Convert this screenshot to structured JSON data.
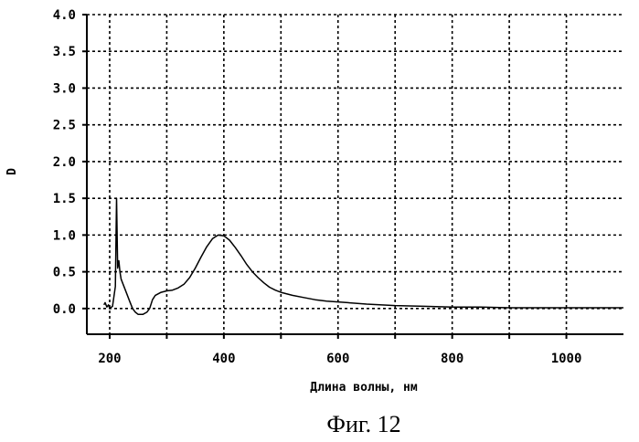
{
  "chart_data": {
    "type": "line",
    "xlabel": "Длина волны, нм",
    "ylabel": "D",
    "caption": "Фиг. 12",
    "xlim": [
      160,
      1100
    ],
    "ylim": [
      -0.35,
      4.0
    ],
    "x_ticks": [
      200,
      400,
      600,
      800,
      1000
    ],
    "y_ticks": [
      "0.0",
      "0.5",
      "1.0",
      "1.5",
      "2.0",
      "2.5",
      "3.0",
      "3.5",
      "4.0"
    ],
    "x_grid": [
      200,
      300,
      400,
      500,
      600,
      700,
      800,
      900,
      1000
    ],
    "y_grid": [
      0,
      0.5,
      1,
      1.5,
      2,
      2.5,
      3,
      3.5,
      4
    ],
    "grid": true,
    "series": [
      {
        "x": [
          190,
          192,
          195,
          198,
          200,
          205,
          210,
          212,
          214,
          216,
          218,
          220,
          225,
          230,
          235,
          240,
          245,
          250,
          258,
          265,
          270,
          275,
          280,
          290,
          300,
          310,
          320,
          330,
          340,
          350,
          360,
          370,
          380,
          390,
          400,
          410,
          420,
          430,
          440,
          450,
          460,
          470,
          480,
          490,
          500,
          520,
          540,
          560,
          580,
          600,
          650,
          700,
          750,
          800,
          850,
          900,
          950,
          1000,
          1050,
          1100
        ],
        "y": [
          0.05,
          0.08,
          0.02,
          0.05,
          0.0,
          0.03,
          0.3,
          1.5,
          0.55,
          0.65,
          0.5,
          0.4,
          0.3,
          0.2,
          0.1,
          0.0,
          -0.05,
          -0.08,
          -0.08,
          -0.05,
          0.0,
          0.12,
          0.18,
          0.22,
          0.24,
          0.25,
          0.28,
          0.33,
          0.42,
          0.55,
          0.7,
          0.84,
          0.95,
          1.0,
          0.99,
          0.93,
          0.83,
          0.72,
          0.6,
          0.5,
          0.42,
          0.35,
          0.29,
          0.25,
          0.22,
          0.18,
          0.15,
          0.12,
          0.1,
          0.09,
          0.06,
          0.04,
          0.03,
          0.02,
          0.02,
          0.01,
          0.01,
          0.01,
          0.01,
          0.01
        ]
      }
    ]
  }
}
